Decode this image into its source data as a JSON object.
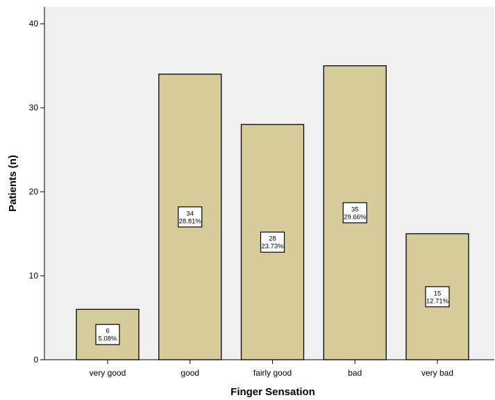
{
  "chart_data": {
    "type": "bar",
    "title": "",
    "xlabel": "Finger Sensation",
    "ylabel": "Patients (n)",
    "categories": [
      "very good",
      "good",
      "fairly good",
      "bad",
      "very bad"
    ],
    "values": [
      6,
      34,
      28,
      35,
      15
    ],
    "percent_labels": [
      "5.08%",
      "28.81%",
      "23.73%",
      "29.66%",
      "12.71%"
    ],
    "ylim": [
      0,
      42
    ],
    "yticks": [
      0,
      10,
      20,
      30,
      40
    ],
    "grid": false,
    "legend": "none",
    "colors": {
      "bar_fill": "#d5cc99",
      "bar_stroke": "#000000",
      "plot_bg": "#f0f0f0",
      "label_box_fill": "#ffffff"
    }
  }
}
